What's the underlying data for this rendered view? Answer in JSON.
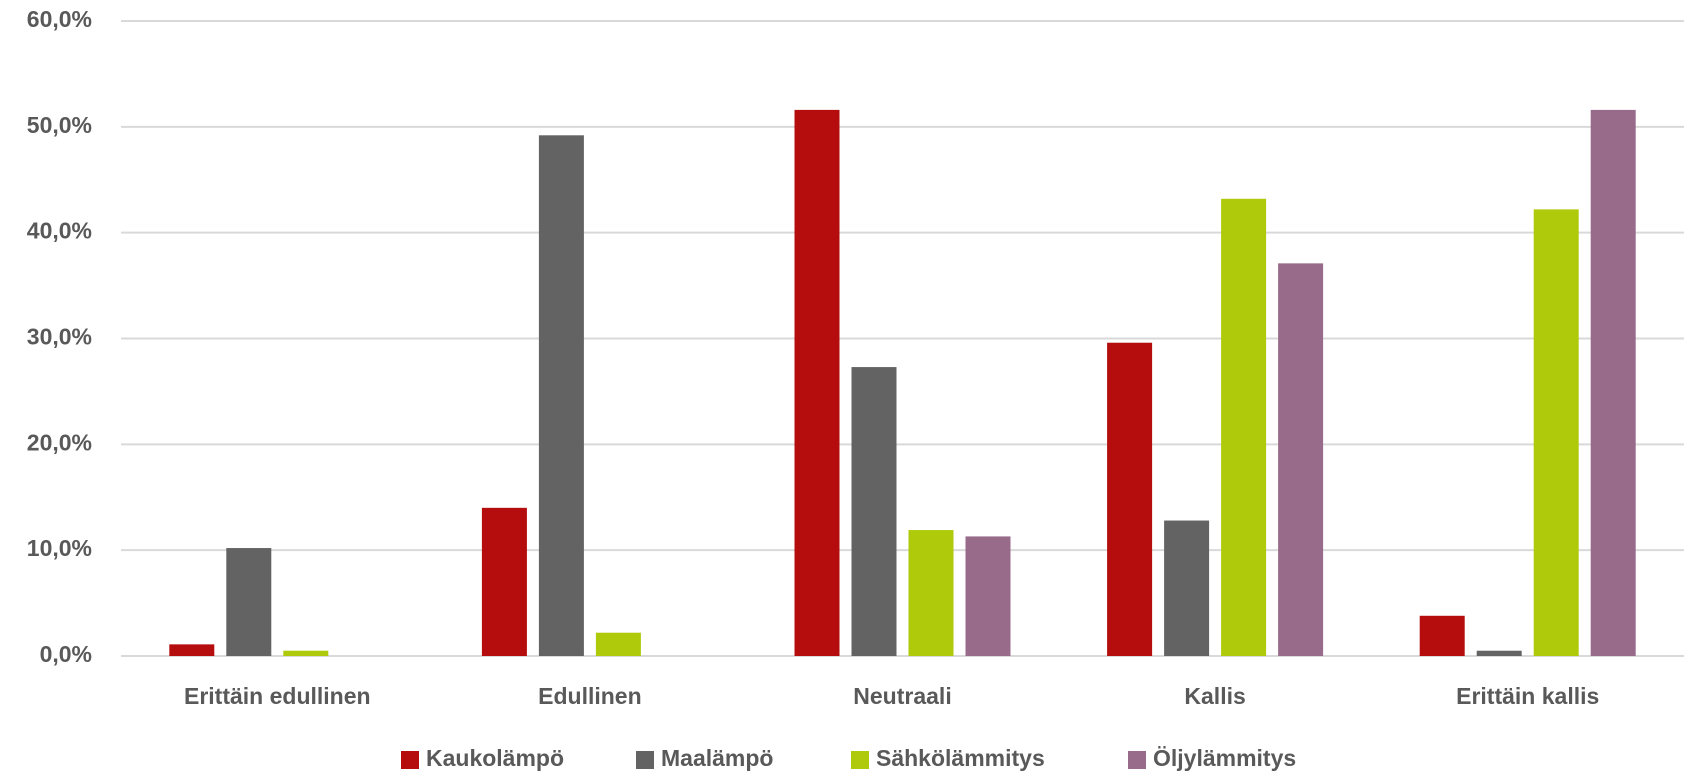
{
  "chart_data": {
    "type": "bar",
    "categories": [
      "Erittäin edullinen",
      "Edullinen",
      "Neutraali",
      "Kallis",
      "Erittäin kallis"
    ],
    "series": [
      {
        "name": "Kaukolämpö",
        "color": "#b50d0d",
        "values": [
          1.1,
          14.0,
          51.6,
          29.6,
          3.8
        ]
      },
      {
        "name": "Maalämpö",
        "color": "#636363",
        "values": [
          10.2,
          49.2,
          27.3,
          12.8,
          0.5
        ]
      },
      {
        "name": "Sähkölämmitys",
        "color": "#afca0b",
        "values": [
          0.5,
          2.2,
          11.9,
          43.2,
          42.2
        ]
      },
      {
        "name": "Öljylämmitys",
        "color": "#996b8b",
        "values": [
          0,
          0,
          11.3,
          37.1,
          51.6
        ]
      }
    ],
    "ylim": [
      0,
      60
    ],
    "yticks": [
      {
        "value": 0,
        "label": "0,0%"
      },
      {
        "value": 10,
        "label": "10,0%"
      },
      {
        "value": 20,
        "label": "20,0%"
      },
      {
        "value": 30,
        "label": "30,0%"
      },
      {
        "value": 40,
        "label": "40,0%"
      },
      {
        "value": 50,
        "label": "50,0%"
      },
      {
        "value": 60,
        "label": "60,0%"
      }
    ],
    "grid": true,
    "legend": "bottom"
  }
}
